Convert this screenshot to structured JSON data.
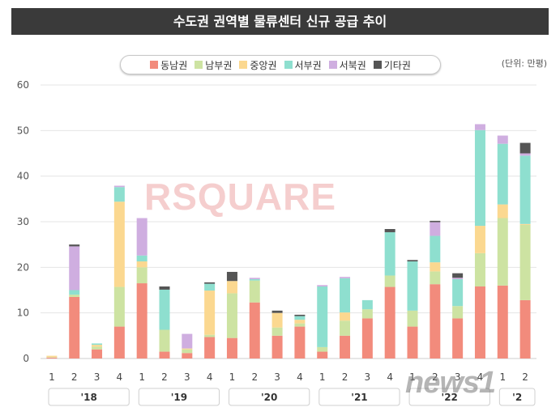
{
  "title": "수도권 권역별 물류센터 신규 공급 추이",
  "unit": "(단위: 만평)",
  "watermark": "RSQUARE",
  "logo": "news1",
  "chart_data": {
    "type": "bar",
    "stacked": true,
    "ylim": [
      0,
      60
    ],
    "yticks": [
      0,
      10,
      20,
      30,
      40,
      50,
      60
    ],
    "categories": [
      "1",
      "2",
      "3",
      "4",
      "1",
      "2",
      "3",
      "4",
      "1",
      "2",
      "3",
      "4",
      "1",
      "2",
      "3",
      "4",
      "1",
      "2",
      "3",
      "4",
      "1",
      "2"
    ],
    "year_groups": [
      {
        "label": "'18",
        "start": 0,
        "end": 3
      },
      {
        "label": "'19",
        "start": 4,
        "end": 7
      },
      {
        "label": "'20",
        "start": 8,
        "end": 11
      },
      {
        "label": "'21",
        "start": 12,
        "end": 15
      },
      {
        "label": "'22",
        "start": 16,
        "end": 19
      },
      {
        "label": "'2",
        "start": 20,
        "end": 21
      }
    ],
    "series": [
      {
        "name": "동남권",
        "color": "#f28b7c",
        "values": [
          0.2,
          13.5,
          2.0,
          7.0,
          16.5,
          1.5,
          1.2,
          4.7,
          4.5,
          12.3,
          5.0,
          7.0,
          1.5,
          5.0,
          8.8,
          15.7,
          7.0,
          16.3,
          8.8,
          15.8,
          16.0,
          12.8
        ]
      },
      {
        "name": "남부권",
        "color": "#cde3a2",
        "values": [
          0.1,
          0.5,
          0.6,
          8.7,
          3.5,
          4.8,
          0.8,
          0.5,
          9.8,
          4.8,
          1.8,
          0.7,
          1.0,
          3.3,
          2.0,
          2.5,
          3.5,
          2.8,
          2.7,
          7.3,
          14.8,
          16.5
        ]
      },
      {
        "name": "중앙권",
        "color": "#fbd890",
        "values": [
          0.3,
          0.0,
          0.4,
          18.7,
          1.3,
          0.0,
          0.2,
          9.7,
          2.7,
          0.0,
          3.2,
          0.8,
          0.0,
          1.8,
          0.0,
          0.0,
          0.0,
          2.0,
          0.0,
          6.0,
          3.0,
          0.2
        ]
      },
      {
        "name": "서부권",
        "color": "#8edfcf",
        "values": [
          0.0,
          1.0,
          0.3,
          3.2,
          1.3,
          8.8,
          0.0,
          1.5,
          0.0,
          0.3,
          0.0,
          0.8,
          13.3,
          7.5,
          2.0,
          9.5,
          10.8,
          5.8,
          5.9,
          21.0,
          13.3,
          15.0
        ]
      },
      {
        "name": "서북권",
        "color": "#cfaee0",
        "values": [
          0.0,
          9.6,
          0.0,
          0.3,
          8.2,
          0.0,
          3.2,
          0.0,
          0.0,
          0.3,
          0.0,
          0.0,
          0.3,
          0.3,
          0.0,
          0.0,
          0.0,
          3.0,
          0.3,
          1.3,
          1.8,
          0.5
        ]
      },
      {
        "name": "기타권",
        "color": "#555555",
        "values": [
          0.0,
          0.4,
          0.0,
          0.0,
          0.0,
          0.7,
          0.0,
          0.3,
          2.0,
          0.0,
          0.5,
          0.3,
          0.0,
          0.0,
          0.0,
          0.7,
          0.3,
          0.3,
          1.0,
          0.0,
          0.0,
          2.3
        ]
      }
    ]
  }
}
